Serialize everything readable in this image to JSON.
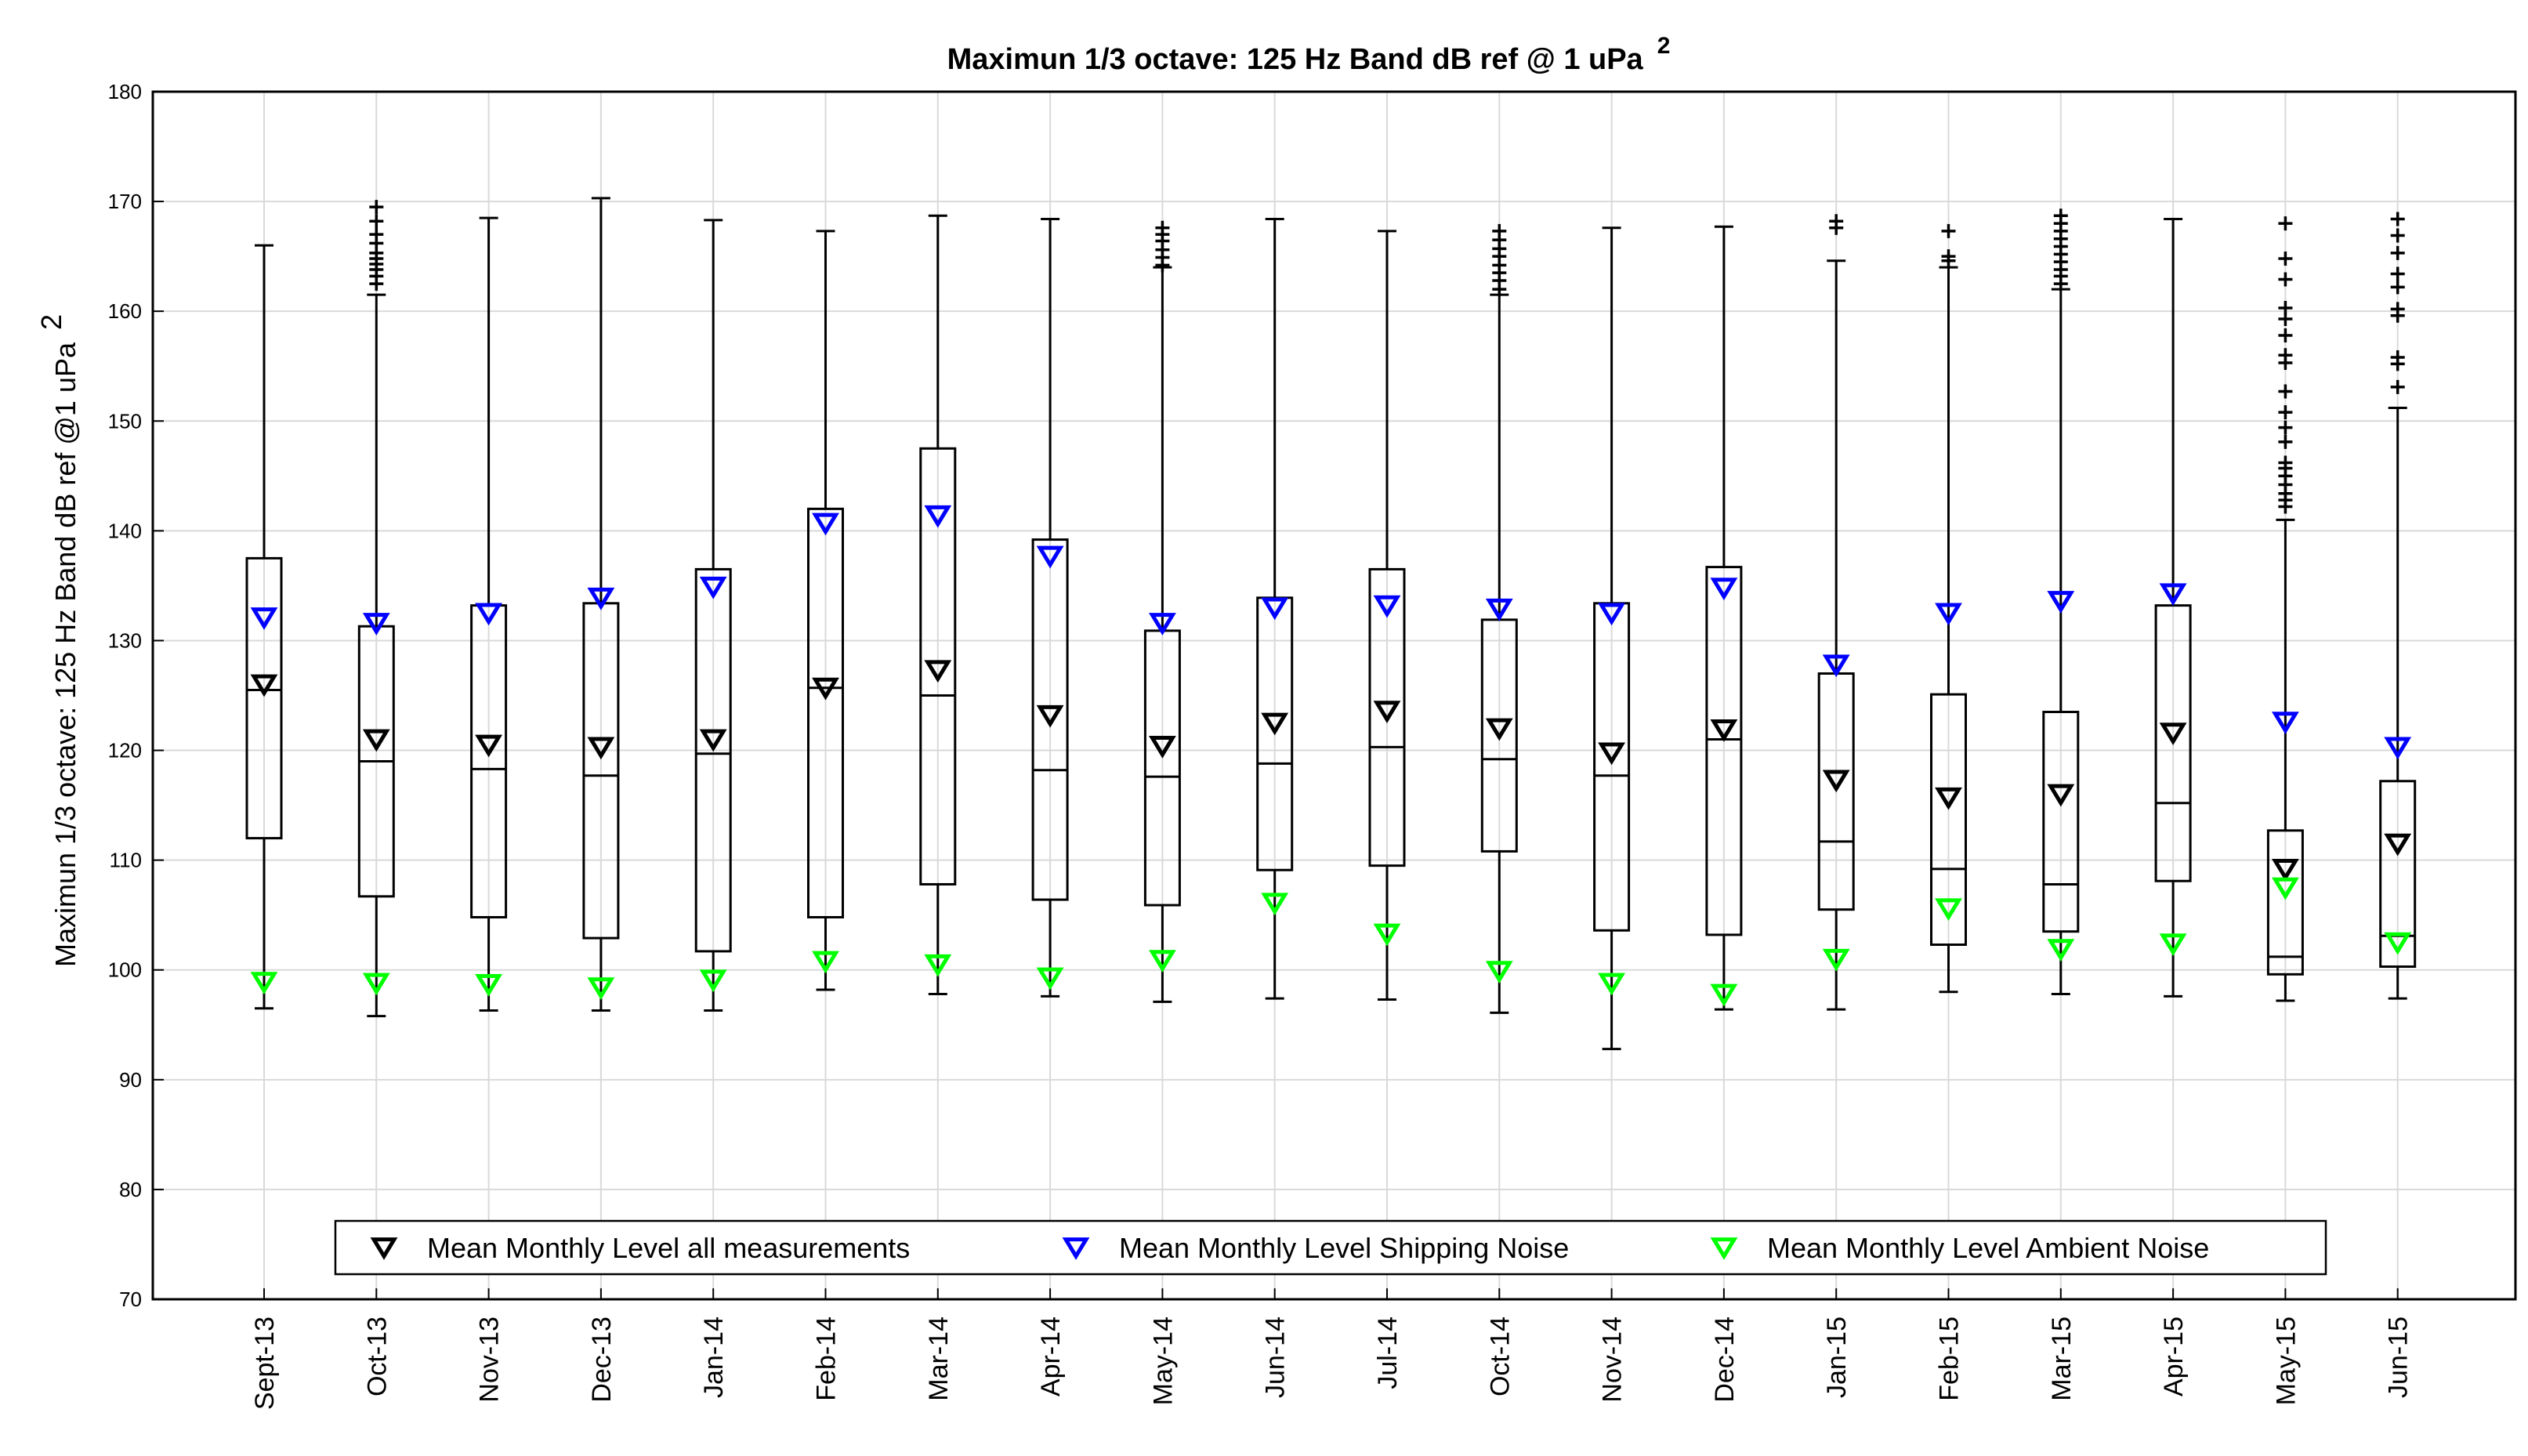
{
  "chart_data": {
    "type": "box",
    "title": "Maximun 1/3 octave: 125 Hz Band dB ref @ 1 uPa",
    "title_superscript": "2",
    "ylabel": "Maximun 1/3 octave: 125 Hz Band dB ref @1 uPa",
    "ylabel_superscript": "2",
    "xlabel": "",
    "ylim": [
      70,
      180
    ],
    "yticks": [
      70,
      80,
      90,
      100,
      110,
      120,
      130,
      140,
      150,
      160,
      170,
      180
    ],
    "grid": true,
    "legend_position": "bottom-center",
    "categories": [
      "Sept-13",
      "Oct-13",
      "Nov-13",
      "Dec-13",
      "Jan-14",
      "Feb-14",
      "Mar-14",
      "Apr-14",
      "May-14",
      "Jun-14",
      "Jul-14",
      "Oct-14",
      "Nov-14",
      "Dec-14",
      "Jan-15",
      "Feb-15",
      "Mar-15",
      "Apr-15",
      "May-15",
      "Jun-15"
    ],
    "boxes": [
      {
        "whisker_low": 96.5,
        "q1": 112.0,
        "median": 125.5,
        "q3": 137.5,
        "whisker_high": 166.0,
        "outliers": []
      },
      {
        "whisker_low": 95.8,
        "q1": 106.7,
        "median": 119.0,
        "q3": 131.3,
        "whisker_high": 161.5,
        "outliers": [
          162.5,
          163.2,
          163.8,
          164.3,
          164.8,
          165.3,
          166.2,
          167.0,
          168.2,
          169.5
        ]
      },
      {
        "whisker_low": 96.3,
        "q1": 104.8,
        "median": 118.3,
        "q3": 133.2,
        "whisker_high": 168.5,
        "outliers": []
      },
      {
        "whisker_low": 96.3,
        "q1": 102.9,
        "median": 117.7,
        "q3": 133.4,
        "whisker_high": 170.3,
        "outliers": []
      },
      {
        "whisker_low": 96.3,
        "q1": 101.7,
        "median": 119.7,
        "q3": 136.5,
        "whisker_high": 168.3,
        "outliers": []
      },
      {
        "whisker_low": 98.2,
        "q1": 104.8,
        "median": 125.7,
        "q3": 142.0,
        "whisker_high": 167.3,
        "outliers": []
      },
      {
        "whisker_low": 97.8,
        "q1": 107.8,
        "median": 125.0,
        "q3": 147.5,
        "whisker_high": 168.7,
        "outliers": []
      },
      {
        "whisker_low": 97.6,
        "q1": 106.4,
        "median": 118.2,
        "q3": 139.2,
        "whisker_high": 168.4,
        "outliers": []
      },
      {
        "whisker_low": 97.1,
        "q1": 105.9,
        "median": 117.6,
        "q3": 130.9,
        "whisker_high": 164.0,
        "outliers": [
          164.2,
          164.9,
          165.6,
          166.4,
          167.0,
          167.6
        ]
      },
      {
        "whisker_low": 97.4,
        "q1": 109.1,
        "median": 118.8,
        "q3": 133.9,
        "whisker_high": 168.4,
        "outliers": []
      },
      {
        "whisker_low": 97.3,
        "q1": 109.5,
        "median": 120.3,
        "q3": 136.5,
        "whisker_high": 167.3,
        "outliers": []
      },
      {
        "whisker_low": 96.1,
        "q1": 110.8,
        "median": 119.2,
        "q3": 131.9,
        "whisker_high": 161.5,
        "outliers": [
          162.0,
          162.8,
          163.5,
          164.2,
          165.0,
          165.7,
          166.5,
          167.3
        ]
      },
      {
        "whisker_low": 92.8,
        "q1": 103.6,
        "median": 117.7,
        "q3": 133.4,
        "whisker_high": 167.6,
        "outliers": []
      },
      {
        "whisker_low": 96.4,
        "q1": 103.2,
        "median": 121.0,
        "q3": 136.7,
        "whisker_high": 167.7,
        "outliers": []
      },
      {
        "whisker_low": 96.4,
        "q1": 105.5,
        "median": 111.7,
        "q3": 127.0,
        "whisker_high": 164.6,
        "outliers": [
          167.6,
          168.2
        ]
      },
      {
        "whisker_low": 98.0,
        "q1": 102.3,
        "median": 109.2,
        "q3": 125.1,
        "whisker_high": 164.0,
        "outliers": [
          164.6,
          165.0,
          167.3
        ]
      },
      {
        "whisker_low": 97.8,
        "q1": 103.5,
        "median": 107.8,
        "q3": 123.5,
        "whisker_high": 162.0,
        "outliers": [
          162.5,
          163.2,
          163.8,
          164.5,
          165.2,
          165.9,
          166.6,
          167.3,
          168.0,
          168.7
        ]
      },
      {
        "whisker_low": 97.6,
        "q1": 108.1,
        "median": 115.2,
        "q3": 133.2,
        "whisker_high": 168.4,
        "outliers": []
      },
      {
        "whisker_low": 97.2,
        "q1": 99.6,
        "median": 101.2,
        "q3": 112.7,
        "whisker_high": 141.0,
        "outliers": [
          142.2,
          142.8,
          143.4,
          144.2,
          145.0,
          145.7,
          146.2,
          148.1,
          149.4,
          150.8,
          152.7,
          155.3,
          156.0,
          157.8,
          159.3,
          160.3,
          162.9,
          164.8,
          168.0
        ]
      },
      {
        "whisker_low": 97.4,
        "q1": 100.3,
        "median": 103.1,
        "q3": 117.2,
        "whisker_high": 151.2,
        "outliers": [
          153.1,
          155.2,
          155.8,
          159.6,
          160.2,
          162.2,
          163.4,
          165.3,
          166.9,
          168.4
        ]
      }
    ],
    "series": [
      {
        "name": "Mean Monthly Level all measurements",
        "color": "#000000",
        "marker": "triangle-down",
        "values": [
          126.0,
          121.0,
          120.5,
          120.3,
          121.0,
          125.7,
          127.3,
          123.2,
          120.4,
          122.5,
          123.6,
          122.0,
          119.8,
          121.9,
          117.3,
          115.7,
          116.0,
          121.6,
          109.2,
          111.5
        ]
      },
      {
        "name": "Mean Monthly Level Shipping Noise",
        "color": "#0000ff",
        "marker": "triangle-down",
        "values": [
          132.1,
          131.6,
          132.5,
          133.9,
          134.9,
          140.7,
          141.4,
          137.7,
          131.6,
          133.0,
          133.2,
          132.9,
          132.5,
          134.8,
          127.8,
          132.5,
          133.6,
          134.3,
          122.6,
          120.3
        ]
      },
      {
        "name": "Mean Monthly Level Ambient Noise",
        "color": "#00ff00",
        "marker": "triangle-down",
        "values": [
          98.9,
          98.8,
          98.7,
          98.4,
          99.1,
          100.8,
          100.5,
          99.3,
          100.9,
          106.1,
          103.3,
          99.9,
          98.8,
          97.8,
          101.0,
          105.6,
          101.9,
          102.4,
          107.5,
          102.5
        ]
      }
    ]
  }
}
